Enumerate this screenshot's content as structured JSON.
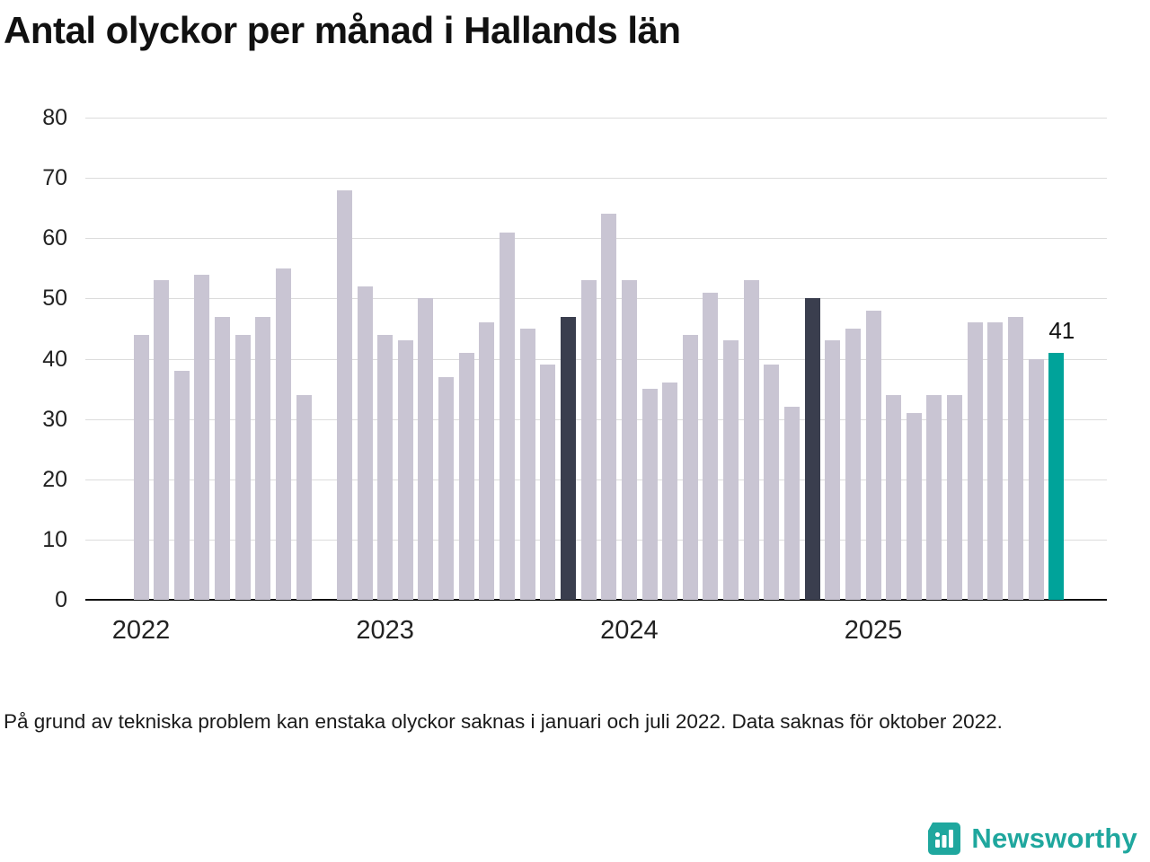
{
  "title": "Antal olyckor per månad i Hallands län",
  "footnote": "På grund av tekniska problem kan enstaka olyckor saknas i januari och juli 2022. Data saknas för oktober 2022.",
  "branding": {
    "name": "Newsworthy",
    "icon": "bar-chart-badge-icon",
    "color": "#1fa79e"
  },
  "colors": {
    "bar_default": "#c9c5d3",
    "bar_dark": "#3a3e4e",
    "bar_current": "#00a39a",
    "grid": "#dcdcdc",
    "axis": "#111111"
  },
  "chart_data": {
    "type": "bar",
    "title": "Antal olyckor per månad i Hallands län",
    "ylabel": "",
    "xlabel": "",
    "ylim": [
      0,
      80
    ],
    "yticks": [
      0,
      10,
      20,
      30,
      40,
      50,
      60,
      70,
      80
    ],
    "grid": "horizontal",
    "legend": "none",
    "note": "Bar missing for 2022-10 (data saknas). Dark bars mark October 2023 and October 2024; teal bar is latest month (October 2025) labeled 41.",
    "year_labels": [
      {
        "label": "2022",
        "month_index": 0
      },
      {
        "label": "2023",
        "month_index": 12
      },
      {
        "label": "2024",
        "month_index": 24
      },
      {
        "label": "2025",
        "month_index": 36
      }
    ],
    "annotation": {
      "label": "41",
      "month_index": 45
    },
    "points": [
      {
        "x": "2022-01",
        "value": 44,
        "role": "default"
      },
      {
        "x": "2022-02",
        "value": 53,
        "role": "default"
      },
      {
        "x": "2022-03",
        "value": 38,
        "role": "default"
      },
      {
        "x": "2022-04",
        "value": 54,
        "role": "default"
      },
      {
        "x": "2022-05",
        "value": 47,
        "role": "default"
      },
      {
        "x": "2022-06",
        "value": 44,
        "role": "default"
      },
      {
        "x": "2022-07",
        "value": 47,
        "role": "default"
      },
      {
        "x": "2022-08",
        "value": 55,
        "role": "default"
      },
      {
        "x": "2022-09",
        "value": 34,
        "role": "default"
      },
      {
        "x": "2022-10",
        "value": null,
        "role": "missing"
      },
      {
        "x": "2022-11",
        "value": 68,
        "role": "default"
      },
      {
        "x": "2022-12",
        "value": 52,
        "role": "default"
      },
      {
        "x": "2023-01",
        "value": 44,
        "role": "default"
      },
      {
        "x": "2023-02",
        "value": 43,
        "role": "default"
      },
      {
        "x": "2023-03",
        "value": 50,
        "role": "default"
      },
      {
        "x": "2023-04",
        "value": 37,
        "role": "default"
      },
      {
        "x": "2023-05",
        "value": 41,
        "role": "default"
      },
      {
        "x": "2023-06",
        "value": 46,
        "role": "default"
      },
      {
        "x": "2023-07",
        "value": 61,
        "role": "default"
      },
      {
        "x": "2023-08",
        "value": 45,
        "role": "default"
      },
      {
        "x": "2023-09",
        "value": 39,
        "role": "default"
      },
      {
        "x": "2023-10",
        "value": 47,
        "role": "dark"
      },
      {
        "x": "2023-11",
        "value": 53,
        "role": "default"
      },
      {
        "x": "2023-12",
        "value": 64,
        "role": "default"
      },
      {
        "x": "2024-01",
        "value": 53,
        "role": "default"
      },
      {
        "x": "2024-02",
        "value": 35,
        "role": "default"
      },
      {
        "x": "2024-03",
        "value": 36,
        "role": "default"
      },
      {
        "x": "2024-04",
        "value": 44,
        "role": "default"
      },
      {
        "x": "2024-05",
        "value": 51,
        "role": "default"
      },
      {
        "x": "2024-06",
        "value": 43,
        "role": "default"
      },
      {
        "x": "2024-07",
        "value": 53,
        "role": "default"
      },
      {
        "x": "2024-08",
        "value": 39,
        "role": "default"
      },
      {
        "x": "2024-09",
        "value": 32,
        "role": "default"
      },
      {
        "x": "2024-10",
        "value": 50,
        "role": "dark"
      },
      {
        "x": "2024-11",
        "value": 43,
        "role": "default"
      },
      {
        "x": "2024-12",
        "value": 45,
        "role": "default"
      },
      {
        "x": "2025-01",
        "value": 48,
        "role": "default"
      },
      {
        "x": "2025-02",
        "value": 34,
        "role": "default"
      },
      {
        "x": "2025-03",
        "value": 31,
        "role": "default"
      },
      {
        "x": "2025-04",
        "value": 34,
        "role": "default"
      },
      {
        "x": "2025-05",
        "value": 34,
        "role": "default"
      },
      {
        "x": "2025-06",
        "value": 46,
        "role": "default"
      },
      {
        "x": "2025-07",
        "value": 46,
        "role": "default"
      },
      {
        "x": "2025-08",
        "value": 47,
        "role": "default"
      },
      {
        "x": "2025-09",
        "value": 40,
        "role": "default"
      },
      {
        "x": "2025-10",
        "value": 41,
        "role": "current"
      }
    ]
  }
}
